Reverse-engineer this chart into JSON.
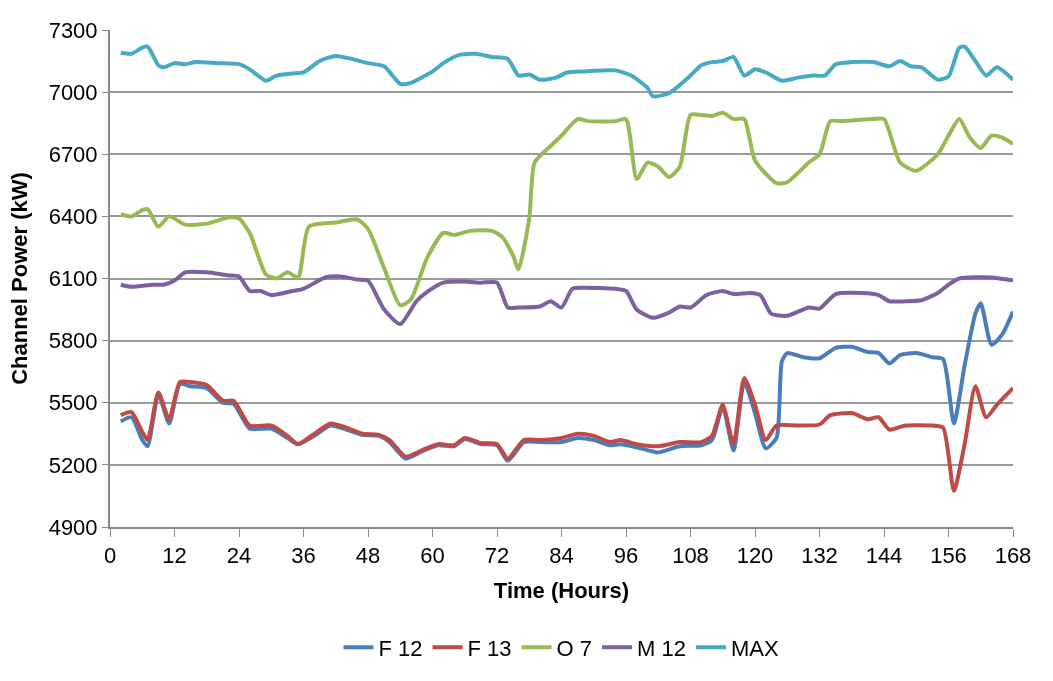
{
  "chart_data": {
    "type": "line",
    "xlabel": "Time (Hours)",
    "ylabel": "Channel Power (kW)",
    "xlim": [
      0,
      168
    ],
    "xticks": [
      0,
      12,
      24,
      36,
      48,
      60,
      72,
      84,
      96,
      108,
      120,
      132,
      144,
      156,
      168
    ],
    "ylim": [
      4900,
      7300
    ],
    "yticks": [
      4900,
      5200,
      5500,
      5800,
      6100,
      6400,
      6700,
      7000,
      7300
    ],
    "grid": "y",
    "legend": "bottom",
    "marker": "none",
    "line_style": "solid",
    "series": [
      {
        "name": "F 12",
        "color": "#4a7ebb",
        "x": [
          2,
          4,
          6,
          7,
          9,
          11,
          13,
          15,
          18,
          21,
          23,
          26,
          30,
          33,
          35,
          38,
          41,
          44,
          47,
          50,
          52,
          55,
          58,
          61,
          64,
          66,
          69,
          72,
          74,
          77,
          80,
          84,
          87,
          90,
          93,
          95,
          98,
          102,
          106,
          110,
          112,
          114,
          116,
          118,
          120,
          122,
          124,
          125,
          126,
          129,
          132,
          135,
          138,
          141,
          143,
          145,
          147,
          150,
          153,
          155,
          157,
          159,
          161,
          162,
          164,
          166,
          168
        ],
        "values": [
          5410,
          5430,
          5320,
          5290,
          5540,
          5400,
          5590,
          5580,
          5570,
          5500,
          5495,
          5375,
          5375,
          5330,
          5300,
          5340,
          5390,
          5370,
          5345,
          5340,
          5310,
          5230,
          5265,
          5295,
          5290,
          5325,
          5300,
          5295,
          5220,
          5310,
          5310,
          5310,
          5330,
          5320,
          5295,
          5300,
          5285,
          5260,
          5290,
          5295,
          5320,
          5480,
          5270,
          5600,
          5450,
          5280,
          5330,
          5700,
          5740,
          5720,
          5715,
          5765,
          5770,
          5745,
          5740,
          5690,
          5730,
          5740,
          5720,
          5710,
          5400,
          5680,
          5930,
          5980,
          5780,
          5830,
          5940
        ]
      },
      {
        "name": "F 13",
        "color": "#be4b48",
        "x": [
          2,
          4,
          6,
          7,
          9,
          11,
          13,
          15,
          18,
          21,
          23,
          26,
          30,
          33,
          35,
          38,
          41,
          44,
          47,
          50,
          52,
          55,
          58,
          61,
          64,
          66,
          69,
          72,
          74,
          77,
          80,
          84,
          87,
          90,
          93,
          95,
          98,
          102,
          106,
          110,
          112,
          114,
          116,
          118,
          120,
          122,
          124,
          128,
          132,
          134,
          138,
          141,
          143,
          145,
          148,
          153,
          155,
          157,
          159,
          161,
          163,
          165,
          168
        ],
        "values": [
          5440,
          5455,
          5360,
          5320,
          5550,
          5420,
          5600,
          5600,
          5585,
          5510,
          5510,
          5390,
          5390,
          5340,
          5300,
          5350,
          5400,
          5380,
          5350,
          5345,
          5320,
          5240,
          5270,
          5300,
          5295,
          5330,
          5305,
          5300,
          5230,
          5320,
          5320,
          5330,
          5350,
          5340,
          5310,
          5320,
          5300,
          5290,
          5310,
          5310,
          5340,
          5490,
          5300,
          5620,
          5490,
          5320,
          5390,
          5390,
          5395,
          5440,
          5450,
          5420,
          5430,
          5370,
          5390,
          5390,
          5380,
          5075,
          5300,
          5580,
          5430,
          5490,
          5570
        ]
      },
      {
        "name": "O 7",
        "color": "#98b954",
        "x": [
          2,
          4,
          6,
          7,
          9,
          11,
          14,
          18,
          22,
          24,
          26,
          29,
          31,
          33,
          35,
          37,
          42,
          46,
          48,
          51,
          54,
          56,
          59,
          62,
          64,
          67,
          71,
          73,
          75,
          76,
          78,
          79,
          82,
          84,
          87,
          89,
          94,
          96,
          98,
          100,
          102,
          104,
          106,
          108,
          110,
          112,
          114,
          116,
          118,
          120,
          124,
          126,
          130,
          132,
          134,
          136,
          142,
          144,
          147,
          150,
          154,
          156,
          158,
          160,
          162,
          164,
          166,
          168
        ],
        "values": [
          6410,
          6400,
          6430,
          6435,
          6350,
          6400,
          6360,
          6365,
          6395,
          6390,
          6320,
          6120,
          6100,
          6130,
          6105,
          6350,
          6370,
          6385,
          6340,
          6150,
          5970,
          6000,
          6200,
          6320,
          6310,
          6330,
          6330,
          6300,
          6210,
          6145,
          6390,
          6660,
          6740,
          6790,
          6870,
          6860,
          6860,
          6870,
          6580,
          6660,
          6640,
          6590,
          6640,
          6890,
          6890,
          6885,
          6900,
          6870,
          6870,
          6670,
          6560,
          6565,
          6660,
          6700,
          6860,
          6860,
          6870,
          6870,
          6660,
          6620,
          6700,
          6790,
          6870,
          6780,
          6730,
          6790,
          6780,
          6750
        ]
      },
      {
        "name": "M 12",
        "color": "#7d60a0",
        "x": [
          2,
          4,
          8,
          10,
          12,
          14,
          18,
          22,
          24,
          26,
          28,
          30,
          34,
          36,
          40,
          43,
          46,
          48,
          51,
          54,
          57,
          59,
          62,
          66,
          69,
          72,
          74,
          76,
          80,
          82,
          84,
          86,
          88,
          94,
          96,
          98,
          101,
          104,
          106,
          108,
          111,
          114,
          116,
          119,
          121,
          123,
          126,
          130,
          132,
          135,
          140,
          143,
          145,
          148,
          151,
          154,
          156,
          158,
          164,
          168
        ],
        "values": [
          6070,
          6060,
          6070,
          6070,
          6090,
          6130,
          6130,
          6115,
          6110,
          6040,
          6040,
          6020,
          6040,
          6050,
          6105,
          6110,
          6095,
          6090,
          5950,
          5880,
          5990,
          6035,
          6080,
          6085,
          6080,
          6080,
          5960,
          5960,
          5965,
          5990,
          5960,
          6050,
          6055,
          6050,
          6040,
          5950,
          5910,
          5935,
          5965,
          5960,
          6020,
          6040,
          6025,
          6030,
          6020,
          5930,
          5920,
          5960,
          5955,
          6025,
          6030,
          6020,
          5990,
          5990,
          5995,
          6030,
          6070,
          6100,
          6105,
          6090
        ]
      },
      {
        "name": "MAX",
        "color": "#46aac5",
        "x": [
          2,
          4,
          6,
          7,
          9,
          10,
          12,
          14,
          16,
          20,
          24,
          26,
          29,
          31,
          34,
          36,
          39,
          42,
          45,
          48,
          51,
          54,
          56,
          60,
          62,
          65,
          68,
          71,
          74,
          76,
          78,
          80,
          83,
          85,
          88,
          94,
          97,
          100,
          101,
          104,
          108,
          110,
          112,
          114,
          116,
          118,
          120,
          122,
          125,
          128,
          131,
          133,
          135,
          138,
          142,
          145,
          147,
          149,
          151,
          154,
          156,
          158,
          159,
          161,
          163,
          165,
          168
        ],
        "values": [
          7190,
          7185,
          7215,
          7220,
          7130,
          7120,
          7140,
          7135,
          7145,
          7140,
          7135,
          7110,
          7055,
          7080,
          7090,
          7095,
          7150,
          7175,
          7160,
          7140,
          7125,
          7040,
          7045,
          7100,
          7140,
          7180,
          7185,
          7170,
          7160,
          7080,
          7085,
          7060,
          7070,
          7095,
          7100,
          7105,
          7080,
          7020,
          6980,
          6995,
          7080,
          7130,
          7145,
          7150,
          7170,
          7080,
          7110,
          7095,
          7055,
          7070,
          7080,
          7080,
          7135,
          7145,
          7145,
          7125,
          7150,
          7125,
          7120,
          7060,
          7075,
          7215,
          7220,
          7150,
          7080,
          7120,
          7060
        ]
      }
    ]
  }
}
